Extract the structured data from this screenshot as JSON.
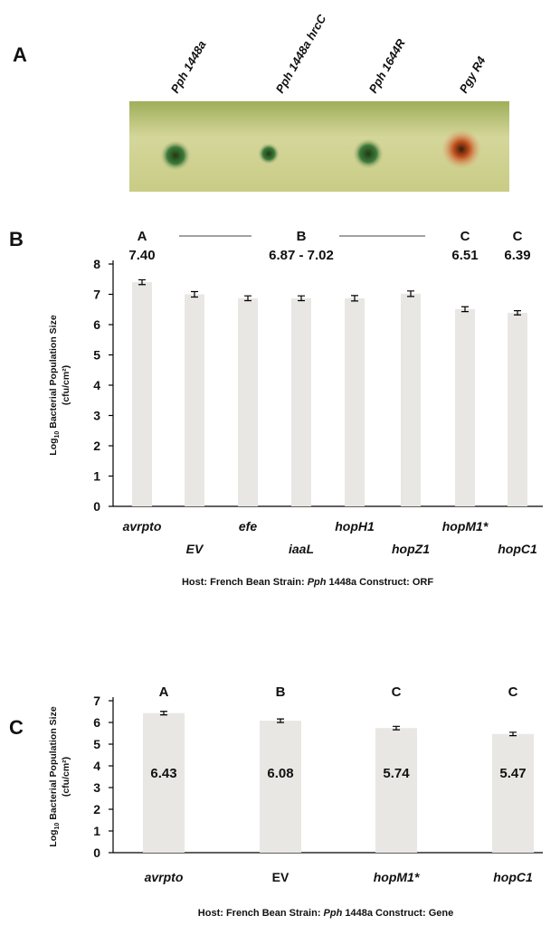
{
  "panel_a": {
    "letter": "A",
    "strains": [
      "Pph 1448a",
      "Pph 1448a hrcC",
      "Pph 1644R",
      "Pgy R4"
    ]
  },
  "chart_data": [
    {
      "type": "bar",
      "panel": "B",
      "categories": [
        "avrpto",
        "EV",
        "efe",
        "iaaL",
        "hopH1",
        "hopZ1",
        "hopM1*",
        "hopC1"
      ],
      "values": [
        7.4,
        7.0,
        6.87,
        6.87,
        6.87,
        7.02,
        6.51,
        6.39
      ],
      "errors": [
        0.08,
        0.09,
        0.08,
        0.08,
        0.09,
        0.09,
        0.08,
        0.07
      ],
      "annotations": [
        {
          "letter": "A",
          "text": "7.40"
        },
        {
          "letter": "B",
          "text": "6.87 - 7.02"
        },
        {
          "letter": "C",
          "text": "6.51"
        },
        {
          "letter": "C",
          "text": "6.39"
        }
      ],
      "ylabel": [
        "Log",
        "10",
        " Bacterial Population Size"
      ],
      "ylabel_unit": "(cfu/cm²)",
      "xlabel": [
        "Host: French Bean  Strain: ",
        "Pph",
        " 1448a Construct: ORF"
      ],
      "ylim": [
        0,
        8
      ],
      "yticks": [
        0,
        1,
        2,
        3,
        4,
        5,
        6,
        7,
        8
      ],
      "color": "#e9e7e4",
      "grid": false
    },
    {
      "type": "bar",
      "panel": "C",
      "categories": [
        "avrpto",
        "EV",
        "hopM1*",
        "hopC1"
      ],
      "values": [
        6.43,
        6.08,
        5.74,
        5.47
      ],
      "errors": [
        0.08,
        0.08,
        0.08,
        0.08
      ],
      "annotations": [
        {
          "letter": "A"
        },
        {
          "letter": "B"
        },
        {
          "letter": "C"
        },
        {
          "letter": "C"
        }
      ],
      "ylabel": [
        "Log",
        "10",
        " Bacterial Population Size"
      ],
      "ylabel_unit": "(cfu/cm²)",
      "xlabel": [
        "Host: French Bean  Strain: ",
        "Pph",
        " 1448a Construct: Gene"
      ],
      "ylim": [
        0,
        7
      ],
      "yticks": [
        0,
        1,
        2,
        3,
        4,
        5,
        6,
        7
      ],
      "color": "#e9e7e4",
      "grid": false
    }
  ]
}
